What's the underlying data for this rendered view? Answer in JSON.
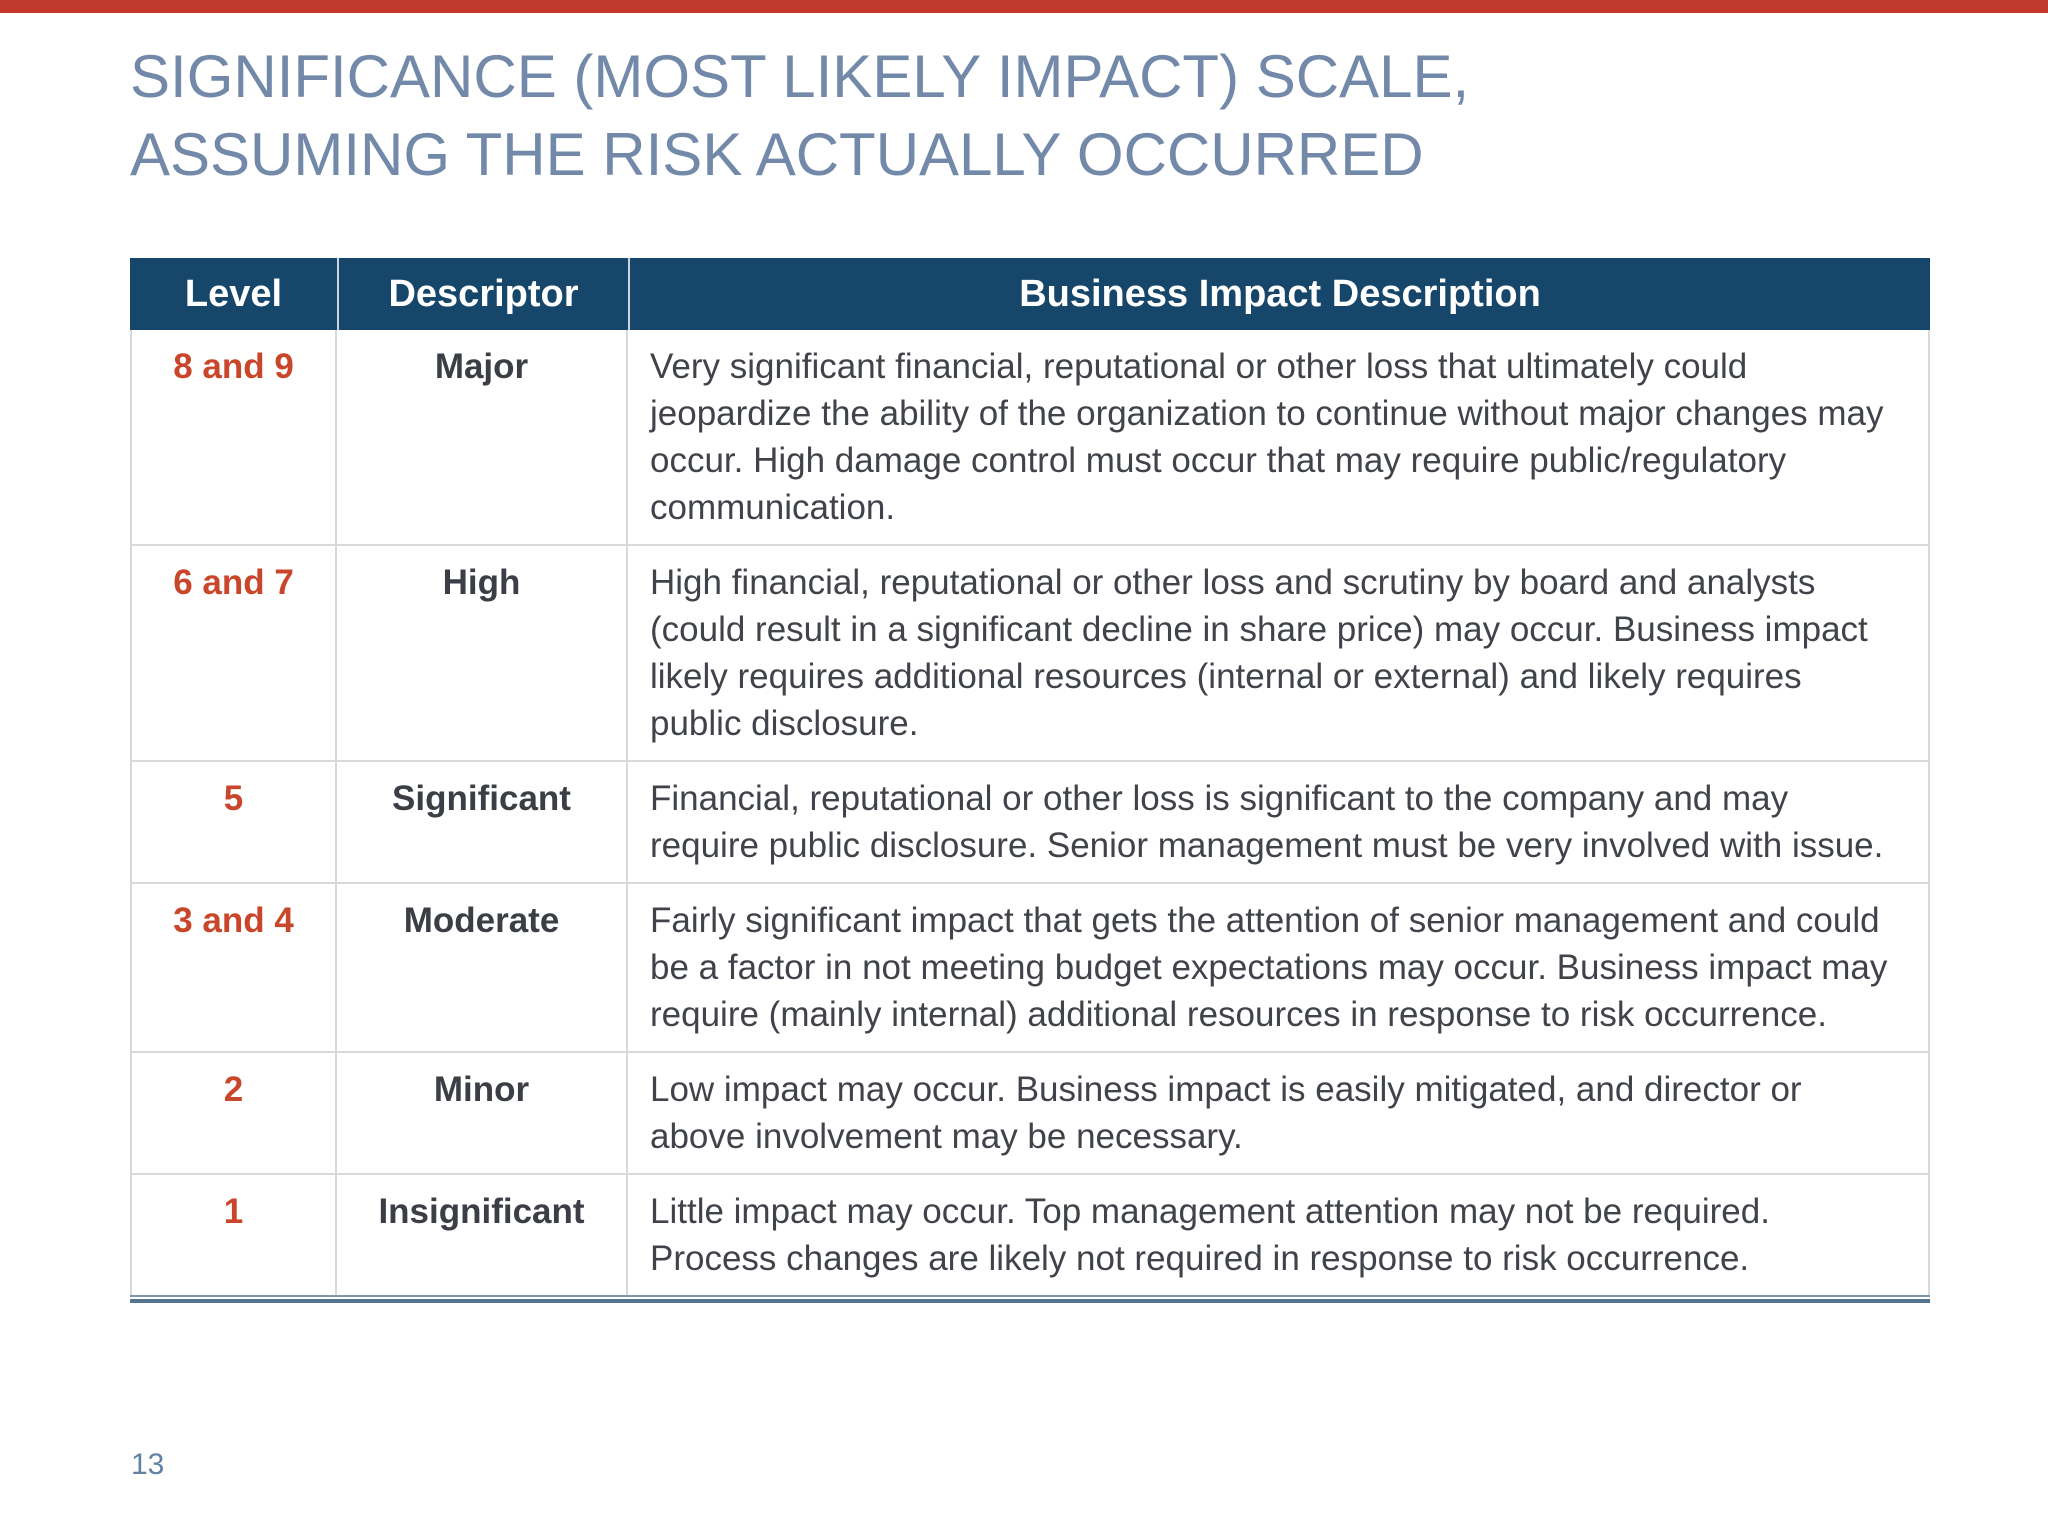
{
  "slide": {
    "title_line1": "SIGNIFICANCE (MOST LIKELY IMPACT) SCALE,",
    "title_line2": "ASSUMING THE RISK ACTUALLY OCCURRED",
    "page_number": "13"
  },
  "table": {
    "headers": [
      "Level",
      "Descriptor",
      "Business Impact Description"
    ],
    "rows": [
      {
        "level": "8 and 9",
        "descriptor": "Major",
        "description": "Very significant financial, reputational or other loss that ultimately could jeopardize the ability of the organization to continue without major changes may occur. High damage control must occur that may require public/regulatory communication."
      },
      {
        "level": "6 and 7",
        "descriptor": "High",
        "description": "High financial, reputational or other loss and scrutiny by board and analysts (could result in a significant decline in share price) may occur. Business impact likely requires additional resources (internal or external) and likely requires public disclosure."
      },
      {
        "level": "5",
        "descriptor": "Significant",
        "description": "Financial, reputational or other loss is significant to the company and may require public disclosure. Senior management must be very involved with issue."
      },
      {
        "level": "3 and 4",
        "descriptor": "Moderate",
        "description": "Fairly significant impact that gets the attention of senior management and could be a factor in not meeting budget expectations may occur. Business impact may require (mainly internal) additional resources in response to risk occurrence."
      },
      {
        "level": "2",
        "descriptor": "Minor",
        "description": "Low impact may occur. Business impact is easily mitigated, and director or above involvement may be necessary."
      },
      {
        "level": "1",
        "descriptor": "Insignificant",
        "description": "Little impact may occur. Top management attention may not be required. Process changes are likely not required in response to risk occurrence."
      }
    ]
  },
  "colors": {
    "header_bg": "#17466B",
    "header_text": "#FFFFFF",
    "level_text": "#C9462B",
    "descriptor_text": "#3B3E45",
    "body_text": "#404349",
    "title_text": "#7289A9",
    "page_number_text": "#5F82A5",
    "row_border": "#D9D9D9",
    "bottom_border_dark": "#54748F",
    "bottom_border_light": "#7F97AB",
    "top_bar": "#C0392B"
  }
}
